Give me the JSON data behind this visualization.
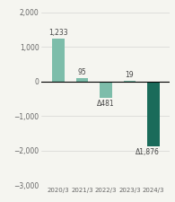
{
  "categories": [
    "2020/3",
    "2021/3",
    "2022/3",
    "2023/3",
    "2024/3"
  ],
  "values": [
    1233,
    95,
    -481,
    19,
    -1876
  ],
  "bar_colors": [
    "#7dbdaa",
    "#7dbdaa",
    "#7dbdaa",
    "#7dbdaa",
    "#1a6b5a"
  ],
  "labels": [
    "1,233",
    "95",
    "Δ481",
    "19",
    "Δ1,876"
  ],
  "ylim": [
    -3000,
    2000
  ],
  "yticks": [
    -3000,
    -2000,
    -1000,
    0,
    1000,
    2000
  ],
  "background_color": "#f5f5f0",
  "bar_width": 0.5,
  "label_offsets": [
    60,
    40,
    -60,
    40,
    -60
  ]
}
